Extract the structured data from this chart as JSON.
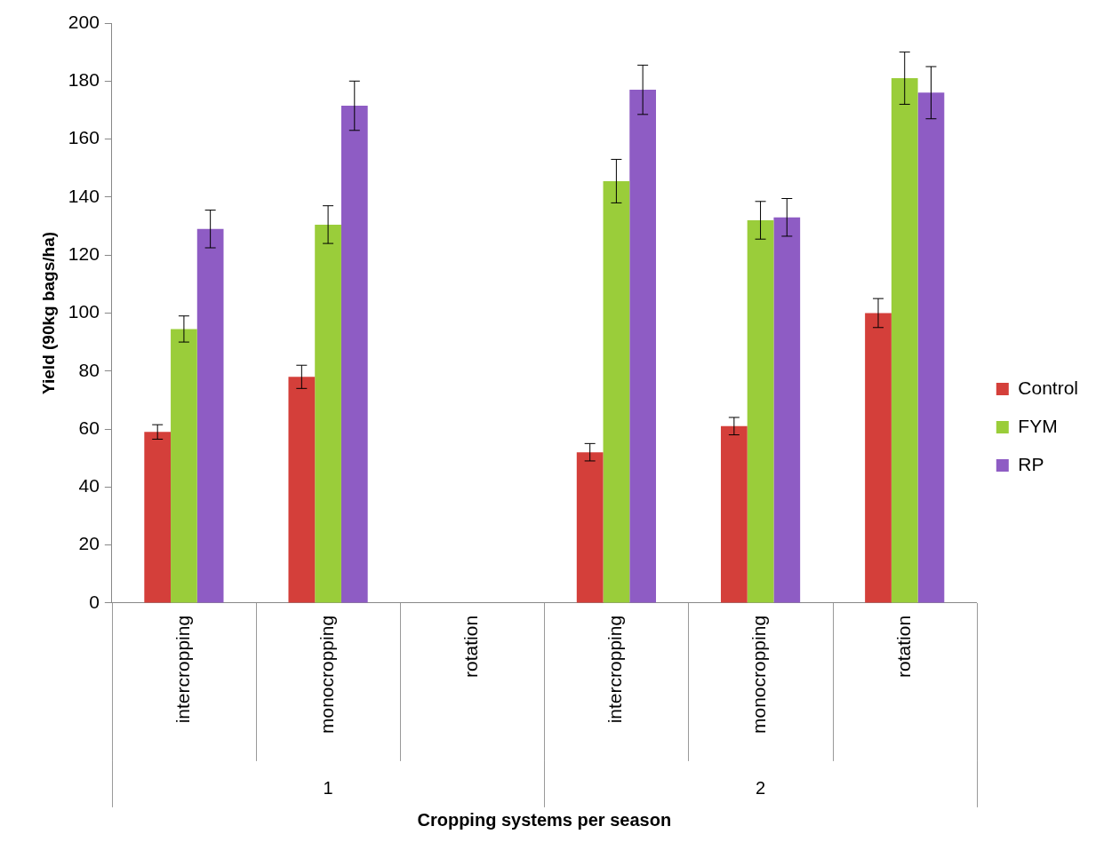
{
  "chart_data": {
    "type": "bar",
    "xlabel": "Cropping systems per season",
    "ylabel": "Yield (90kg bags/ha)",
    "categories": [
      "intercropping",
      "monocropping",
      "rotation",
      "intercropping",
      "monocropping",
      "rotation"
    ],
    "series": [
      {
        "name": "Control",
        "color": "#d43f3a",
        "values": [
          59,
          78,
          null,
          52,
          61,
          100
        ],
        "errors": [
          2.5,
          4,
          null,
          3,
          3,
          5
        ]
      },
      {
        "name": "FYM",
        "color": "#9acd3a",
        "values": [
          94.5,
          130.5,
          null,
          145.5,
          132,
          181
        ],
        "errors": [
          4.5,
          6.5,
          null,
          7.5,
          6.5,
          9
        ]
      },
      {
        "name": "RP",
        "color": "#8e5cc4",
        "values": [
          129,
          171.5,
          null,
          177,
          133,
          176
        ],
        "errors": [
          6.5,
          8.5,
          null,
          8.5,
          6.5,
          9
        ]
      }
    ],
    "ylim": [
      0,
      200
    ],
    "yticks": [
      0,
      20,
      40,
      60,
      80,
      100,
      120,
      140,
      160,
      180,
      200
    ],
    "annotations": [
      "1",
      "2"
    ],
    "grid": false,
    "legend": "right"
  }
}
